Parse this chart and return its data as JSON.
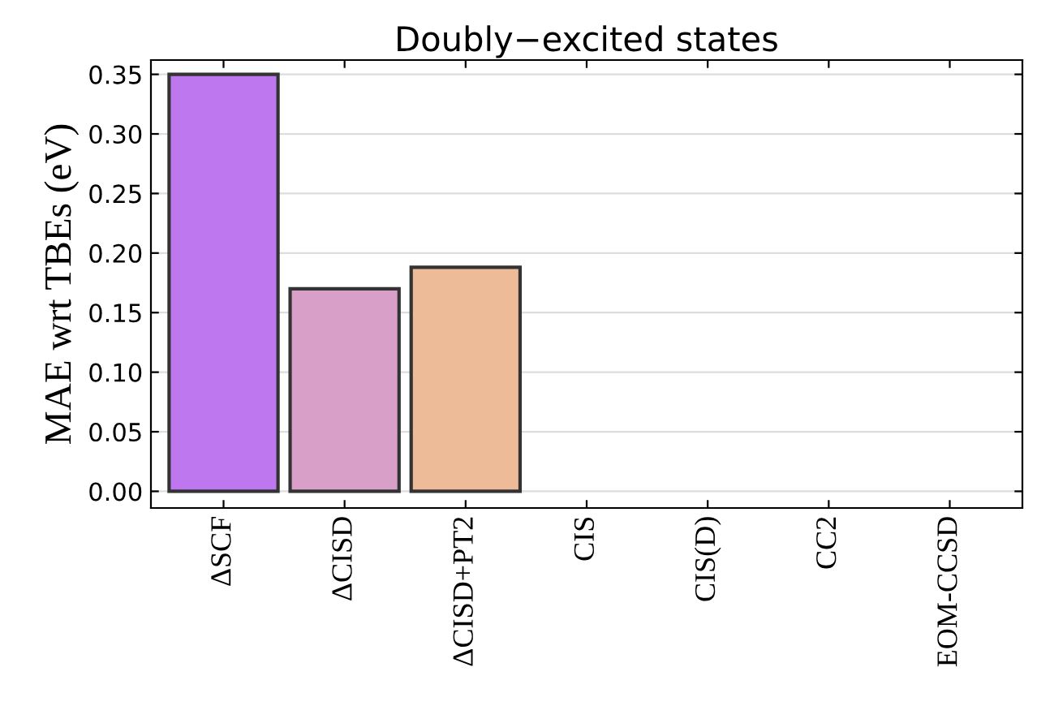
{
  "chart_data": {
    "type": "bar",
    "title": "Doubly−excited states",
    "ylabel": "MAE wrt TBEs (eV)",
    "categories": [
      "ΔSCF",
      "ΔCISD",
      "ΔCISD+PT2",
      "CIS",
      "CIS(D)",
      "CC2",
      "EOM-CCSD"
    ],
    "values": [
      0.35,
      0.17,
      0.188,
      null,
      null,
      null,
      null
    ],
    "colors": [
      "#bf77f0",
      "#d8a0c8",
      "#edbb98",
      "#c0c0c0",
      "#c0c0c0",
      "#c0c0c0",
      "#c0c0c0"
    ],
    "ylim": [
      -0.014,
      0.362
    ],
    "yticks": [
      {
        "value": 0,
        "label": "0.00"
      },
      0.05,
      {
        "value": 0.1,
        "label": "0.10"
      },
      0.15,
      {
        "value": 0.2,
        "label": "0.20"
      },
      0.25,
      {
        "value": 0.3,
        "label": "0.30"
      },
      0.35
    ],
    "grid": "y"
  }
}
